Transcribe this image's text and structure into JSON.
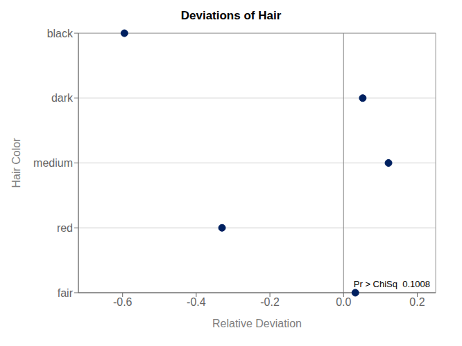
{
  "chart_data": {
    "type": "scatter",
    "title": "Deviations of Hair",
    "categories": [
      "black",
      "dark",
      "medium",
      "red",
      "fair"
    ],
    "values": [
      -0.595,
      0.052,
      0.122,
      -0.33,
      0.032
    ],
    "xlabel": "Relative Deviation",
    "ylabel": "Hair Color",
    "xlim": [
      -0.72,
      0.25
    ],
    "xticks": [
      -0.6,
      -0.4,
      -0.2,
      {
        "value": 0,
        "label": "0.0"
      },
      0.2
    ],
    "color": "#002060",
    "grid": true,
    "vline": 0,
    "annotation": "Pr > ChiSq  0.1008"
  }
}
